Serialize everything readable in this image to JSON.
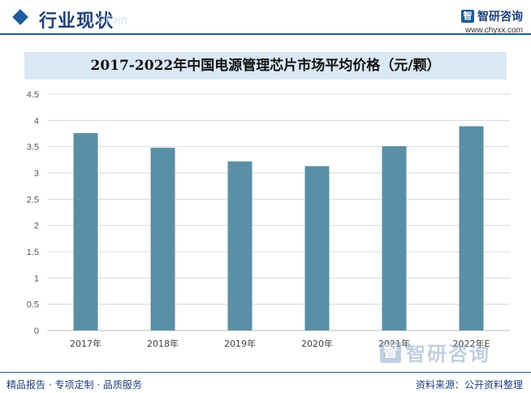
{
  "header": {
    "title": "行业现状",
    "subtitle_en": "Chain"
  },
  "brand": {
    "name": "智研咨询",
    "url": "www.chyxx.com"
  },
  "footer": {
    "left": "精品报告 · 专项定制 · 品质服务",
    "right": "资料来源：公开资料整理"
  },
  "watermark": {
    "name": "智研咨询"
  },
  "colors": {
    "bar": "#5b8fa6",
    "accent": "#1f5b9a",
    "title_bar_bg": "#dbe8f6"
  },
  "chart_data": {
    "type": "bar",
    "title": "2017-2022年中国电源管理芯片市场平均价格（元/颗）",
    "categories": [
      "2017年",
      "2018年",
      "2019年",
      "2020年",
      "2021年",
      "2022年E"
    ],
    "values": [
      3.76,
      3.48,
      3.22,
      3.13,
      3.51,
      3.89
    ],
    "ylim": [
      0,
      4.5
    ],
    "yticks": [
      "0",
      "0.5",
      "1",
      "1.5",
      "2",
      "2.5",
      "3",
      "3.5",
      "4",
      "4.5"
    ],
    "grid": true,
    "xlabel": "",
    "ylabel": ""
  }
}
